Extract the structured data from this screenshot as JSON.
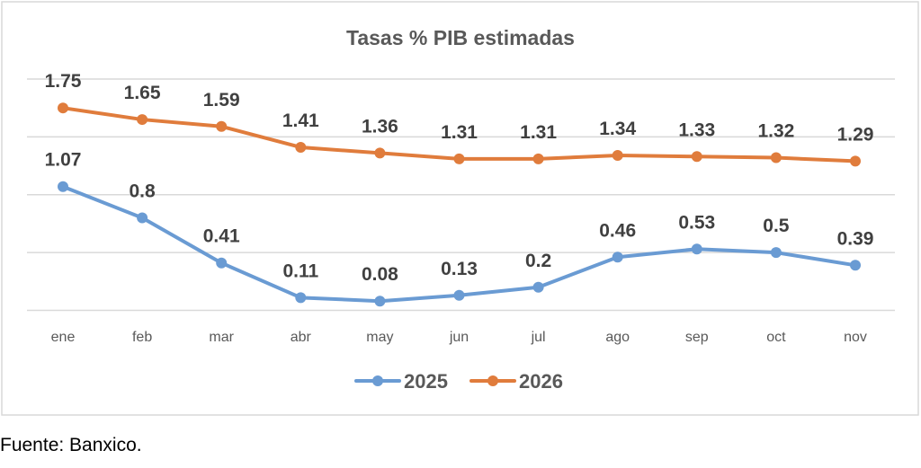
{
  "chart_data": {
    "type": "line",
    "title": "Tasas % PIB estimadas",
    "categories": [
      "ene",
      "feb",
      "mar",
      "abr",
      "may",
      "jun",
      "jul",
      "ago",
      "sep",
      "oct",
      "nov"
    ],
    "series": [
      {
        "name": "2025",
        "color": "#6A9BD3",
        "values": [
          1.07,
          0.8,
          0.41,
          0.11,
          0.08,
          0.13,
          0.2,
          0.46,
          0.53,
          0.5,
          0.39
        ]
      },
      {
        "name": "2026",
        "color": "#E07C3C",
        "values": [
          1.75,
          1.65,
          1.59,
          1.41,
          1.36,
          1.31,
          1.31,
          1.34,
          1.33,
          1.32,
          1.29
        ]
      }
    ],
    "xlabel": "",
    "ylabel": "",
    "ylim": [
      0,
      2
    ],
    "grid": true,
    "legend": "bottom"
  },
  "footer": "Fuente: Banxico."
}
